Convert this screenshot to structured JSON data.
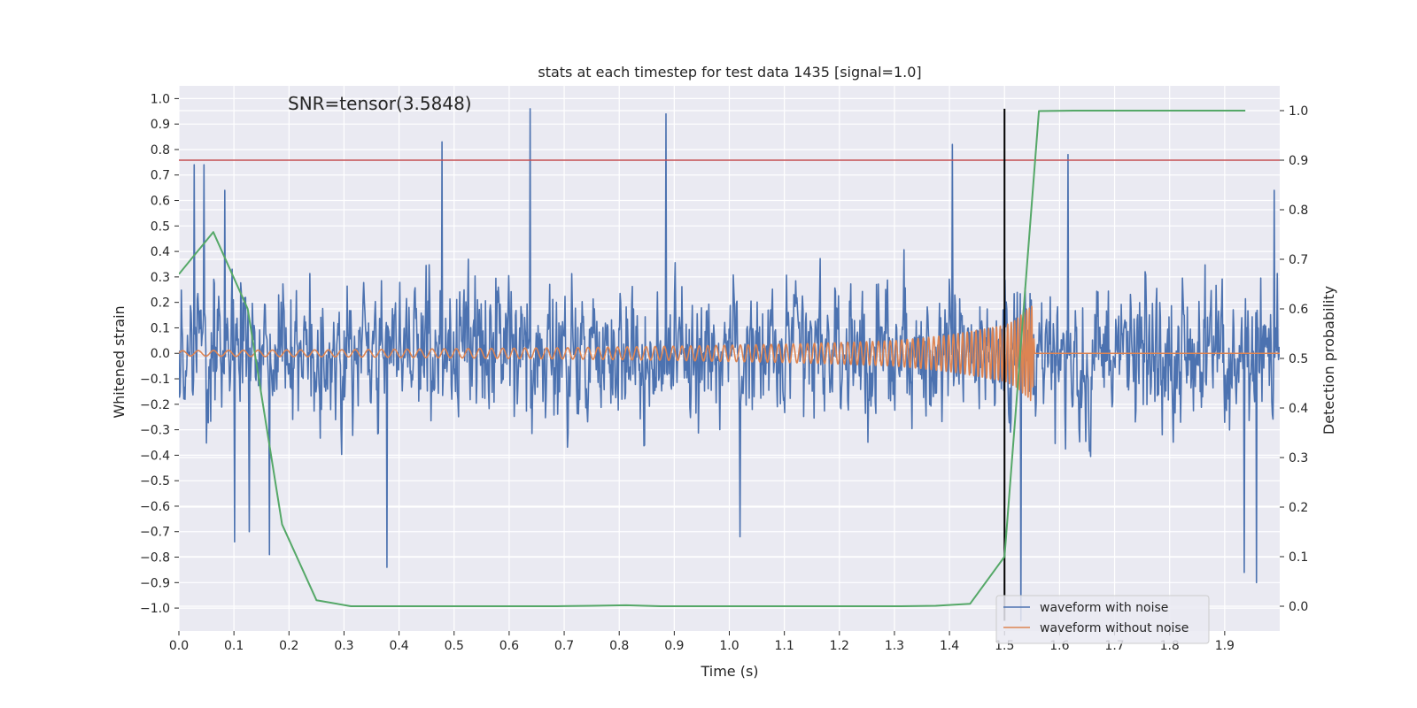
{
  "chart_data": {
    "type": "line",
    "title": "stats at each timestep for test data 1435 [signal=1.0]",
    "xlabel": "Time (s)",
    "ylabel_left": "Whitened strain",
    "ylabel_right": "Detection probability",
    "xlim": [
      0.0,
      2.0
    ],
    "ylim_left": [
      -1.09,
      1.05
    ],
    "ylim_right": [
      -0.05,
      1.05
    ],
    "x_ticks": [
      0.0,
      0.1,
      0.2,
      0.3,
      0.4,
      0.5,
      0.6,
      0.7,
      0.8,
      0.9,
      1.0,
      1.1,
      1.2,
      1.3,
      1.4,
      1.5,
      1.6,
      1.7,
      1.8,
      1.9
    ],
    "x_tick_labels": [
      "0.0",
      "0.1",
      "0.2",
      "0.3",
      "0.4",
      "0.5",
      "0.6",
      "0.7",
      "0.8",
      "0.9",
      "1.0",
      "1.1",
      "1.2",
      "1.3",
      "1.4",
      "1.5",
      "1.6",
      "1.7",
      "1.8",
      "1.9"
    ],
    "y_left_ticks": [
      1.0,
      0.9,
      0.8,
      0.7,
      0.6,
      0.5,
      0.4,
      0.3,
      0.2,
      0.1,
      0.0,
      -0.1,
      -0.2,
      -0.3,
      -0.4,
      -0.5,
      -0.6,
      -0.7,
      -0.8,
      -0.9,
      -1.0
    ],
    "y_left_tick_labels": [
      "1.0",
      "0.9",
      "0.8",
      "0.7",
      "0.6",
      "0.5",
      "0.4",
      "0.3",
      "0.2",
      "0.1",
      "0.0",
      "−0.1",
      "−0.2",
      "−0.3",
      "−0.4",
      "−0.5",
      "−0.6",
      "−0.7",
      "−0.8",
      "−0.9",
      "−1.0"
    ],
    "y_right_ticks": [
      1.0,
      0.9,
      0.8,
      0.7,
      0.6,
      0.5,
      0.4,
      0.3,
      0.2,
      0.1,
      0.0
    ],
    "y_right_tick_labels": [
      "1.0",
      "0.9",
      "0.8",
      "0.7",
      "0.6",
      "0.5",
      "0.4",
      "0.3",
      "0.2",
      "0.1",
      "0.0"
    ],
    "grid": true,
    "legend_position": "lower-right",
    "annotation": "SNR=tensor(3.5848)",
    "threshold_line": {
      "axis": "right",
      "y": 0.9,
      "color": "#c44e52"
    },
    "event_marker": {
      "x": 1.5,
      "y_left_range": [
        -1.05,
        0.96
      ],
      "color": "#000000"
    },
    "series": [
      {
        "name": "waveform with noise",
        "axis": "left",
        "color": "#4c72b0",
        "style": "noise",
        "n_points": 1800,
        "abs_range_typical": 0.42,
        "peaks": [
          [
            0.028,
            0.74
          ],
          [
            0.046,
            0.74
          ],
          [
            0.083,
            0.64
          ],
          [
            0.101,
            -0.74
          ],
          [
            0.128,
            -0.7
          ],
          [
            0.165,
            -0.79
          ],
          [
            0.378,
            -0.84
          ],
          [
            0.478,
            0.83
          ],
          [
            0.638,
            0.96
          ],
          [
            0.885,
            0.94
          ],
          [
            1.02,
            -0.72
          ],
          [
            1.405,
            0.82
          ],
          [
            1.53,
            -1.05
          ],
          [
            1.615,
            0.78
          ],
          [
            1.935,
            -0.86
          ],
          [
            1.958,
            -0.9
          ],
          [
            1.99,
            0.64
          ]
        ]
      },
      {
        "name": "waveform without noise",
        "axis": "left",
        "color": "#dd8452",
        "style": "chirp",
        "x": [
          0.0,
          0.1,
          0.2,
          0.3,
          0.4,
          0.5,
          0.6,
          0.7,
          0.8,
          0.9,
          1.0,
          1.1,
          1.2,
          1.3,
          1.35,
          1.4,
          1.45,
          1.5,
          1.52,
          1.54,
          1.55,
          1.555,
          1.6,
          1.7,
          1.8,
          1.9,
          2.0
        ],
        "amplitude": [
          0.01,
          0.012,
          0.013,
          0.014,
          0.016,
          0.018,
          0.02,
          0.022,
          0.025,
          0.028,
          0.032,
          0.036,
          0.042,
          0.05,
          0.06,
          0.072,
          0.09,
          0.11,
          0.13,
          0.17,
          0.19,
          0.0,
          0.0,
          0.0,
          0.0,
          0.0,
          0.0
        ],
        "frequency_hz": [
          35,
          37,
          39,
          41,
          43,
          46,
          49,
          53,
          57,
          62,
          68,
          75,
          84,
          96,
          104,
          114,
          128,
          148,
          165,
          200,
          240,
          240,
          240,
          240,
          240,
          240,
          240
        ]
      },
      {
        "name": "detection probability",
        "axis": "right",
        "color": "#55a868",
        "style": "line",
        "x": [
          0.0,
          0.0625,
          0.125,
          0.1875,
          0.25,
          0.3125,
          0.375,
          0.4375,
          0.5,
          0.5625,
          0.625,
          0.6875,
          0.75,
          0.8125,
          0.875,
          0.9375,
          1.0,
          1.0625,
          1.125,
          1.1875,
          1.25,
          1.3125,
          1.375,
          1.4375,
          1.5,
          1.5625,
          1.625,
          1.6875,
          1.75,
          1.8125,
          1.875,
          1.9375
        ],
        "y": [
          0.67,
          0.755,
          0.6,
          0.165,
          0.012,
          0.0,
          0.0,
          0.0,
          0.0,
          0.0,
          0.0,
          0.0,
          0.001,
          0.002,
          0.0,
          0.0,
          0.0,
          0.0,
          0.0,
          0.0,
          0.0,
          0.0,
          0.001,
          0.005,
          0.1,
          0.999,
          1.0,
          1.0,
          1.0,
          1.0,
          1.0,
          1.0
        ]
      }
    ]
  }
}
